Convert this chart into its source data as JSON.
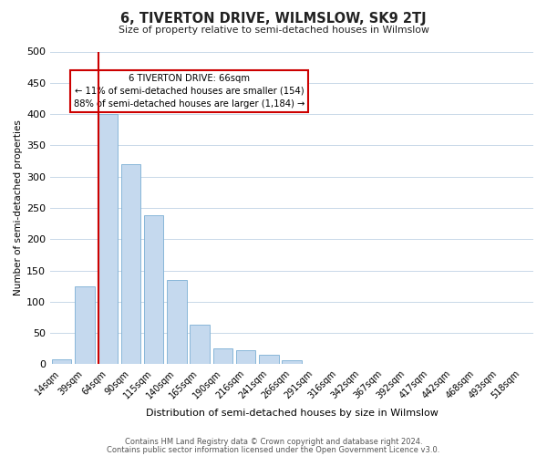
{
  "title": "6, TIVERTON DRIVE, WILMSLOW, SK9 2TJ",
  "subtitle": "Size of property relative to semi-detached houses in Wilmslow",
  "xlabel": "Distribution of semi-detached houses by size in Wilmslow",
  "ylabel": "Number of semi-detached properties",
  "bar_labels": [
    "14sqm",
    "39sqm",
    "64sqm",
    "90sqm",
    "115sqm",
    "140sqm",
    "165sqm",
    "190sqm",
    "216sqm",
    "241sqm",
    "266sqm",
    "291sqm",
    "316sqm",
    "342sqm",
    "367sqm",
    "392sqm",
    "417sqm",
    "442sqm",
    "468sqm",
    "493sqm",
    "518sqm"
  ],
  "bar_heights": [
    8,
    125,
    400,
    320,
    238,
    135,
    64,
    26,
    23,
    16,
    6,
    1,
    0,
    0,
    0,
    0,
    0,
    0,
    0,
    0,
    0
  ],
  "bar_color": "#c5d9ee",
  "bar_edge_color": "#7bafd4",
  "highlight_line_color": "#cc0000",
  "highlight_bar_index": 2,
  "ylim": [
    0,
    500
  ],
  "yticks": [
    0,
    50,
    100,
    150,
    200,
    250,
    300,
    350,
    400,
    450,
    500
  ],
  "annotation_line1": "6 TIVERTON DRIVE: 66sqm",
  "annotation_line2": "← 11% of semi-detached houses are smaller (154)",
  "annotation_line3": "88% of semi-detached houses are larger (1,184) →",
  "annotation_box_color": "#ffffff",
  "annotation_box_edge": "#cc0000",
  "footer_line1": "Contains HM Land Registry data © Crown copyright and database right 2024.",
  "footer_line2": "Contains public sector information licensed under the Open Government Licence v3.0.",
  "background_color": "#ffffff",
  "grid_color": "#c8d8e8"
}
